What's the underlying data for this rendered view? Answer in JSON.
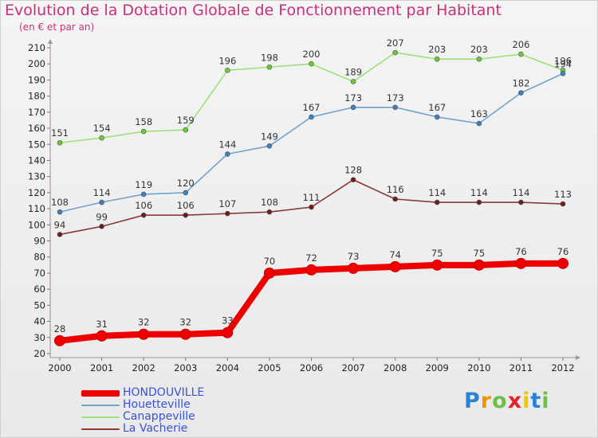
{
  "title": "Evolution de la Dotation Globale de Fonctionnement par Habitant",
  "subtitle": "(en € et par an)",
  "chart_data": {
    "type": "line",
    "title": "Evolution de la Dotation Globale de Fonctionnement par Habitant",
    "subtitle": "(en € et par an)",
    "xlabel": "",
    "ylabel": "",
    "x": [
      "2000",
      "2001",
      "2002",
      "2003",
      "2004",
      "2005",
      "2006",
      "2007",
      "2008",
      "2009",
      "2010",
      "2011",
      "2012"
    ],
    "ylim": [
      20,
      210
    ],
    "yticks": [
      20,
      30,
      40,
      50,
      60,
      70,
      80,
      90,
      100,
      110,
      120,
      130,
      140,
      150,
      160,
      170,
      180,
      190,
      200,
      210
    ],
    "grid": false,
    "legend_position": "bottom-left",
    "series": [
      {
        "name": "HONDOUVILLE",
        "color": "#ee0000",
        "values": [
          28,
          31,
          32,
          32,
          33,
          70,
          72,
          73,
          74,
          75,
          75,
          76,
          76
        ],
        "labels": [
          "28",
          "31",
          "32",
          "32",
          "33",
          "70",
          "72",
          "73",
          "74",
          "75",
          "75",
          "76",
          "76"
        ]
      },
      {
        "name": "Houetteville",
        "color": "#6fa2cf",
        "marker_color": "#3f7fbf",
        "values": [
          108,
          114,
          119,
          120,
          144,
          149,
          167,
          173,
          173,
          167,
          163,
          182,
          194
        ],
        "labels": [
          "108",
          "114",
          "119",
          "120",
          "144",
          "149",
          "167",
          "173",
          "173",
          "167",
          "163",
          "182",
          "194"
        ]
      },
      {
        "name": "Canappeville",
        "color": "#9ee07a",
        "marker_color": "#66cc33",
        "values": [
          151,
          154,
          158,
          159,
          196,
          198,
          200,
          189,
          207,
          203,
          203,
          206,
          196
        ],
        "labels": [
          "151",
          "154",
          "158",
          "159",
          "196",
          "198",
          "200",
          "189",
          "207",
          "203",
          "203",
          "206",
          "196"
        ]
      },
      {
        "name": "La Vacherie",
        "color": "#8b3a3a",
        "marker_color": "#6b1f1f",
        "values": [
          94,
          99,
          106,
          106,
          107,
          108,
          111,
          128,
          116,
          114,
          114,
          114,
          113
        ],
        "labels": [
          "94",
          "99",
          "106",
          "106",
          "107",
          "108",
          "111",
          "128",
          "116",
          "114",
          "114",
          "114",
          "113"
        ]
      }
    ]
  },
  "logo": {
    "letters": [
      "P",
      "r",
      "o",
      "x",
      "i",
      "t",
      "i"
    ],
    "colors": [
      "#2a82d4",
      "#f29200",
      "#6cc04a",
      "#e2232a",
      "#f2c200",
      "#2a82d4",
      "#6cc04a"
    ]
  }
}
